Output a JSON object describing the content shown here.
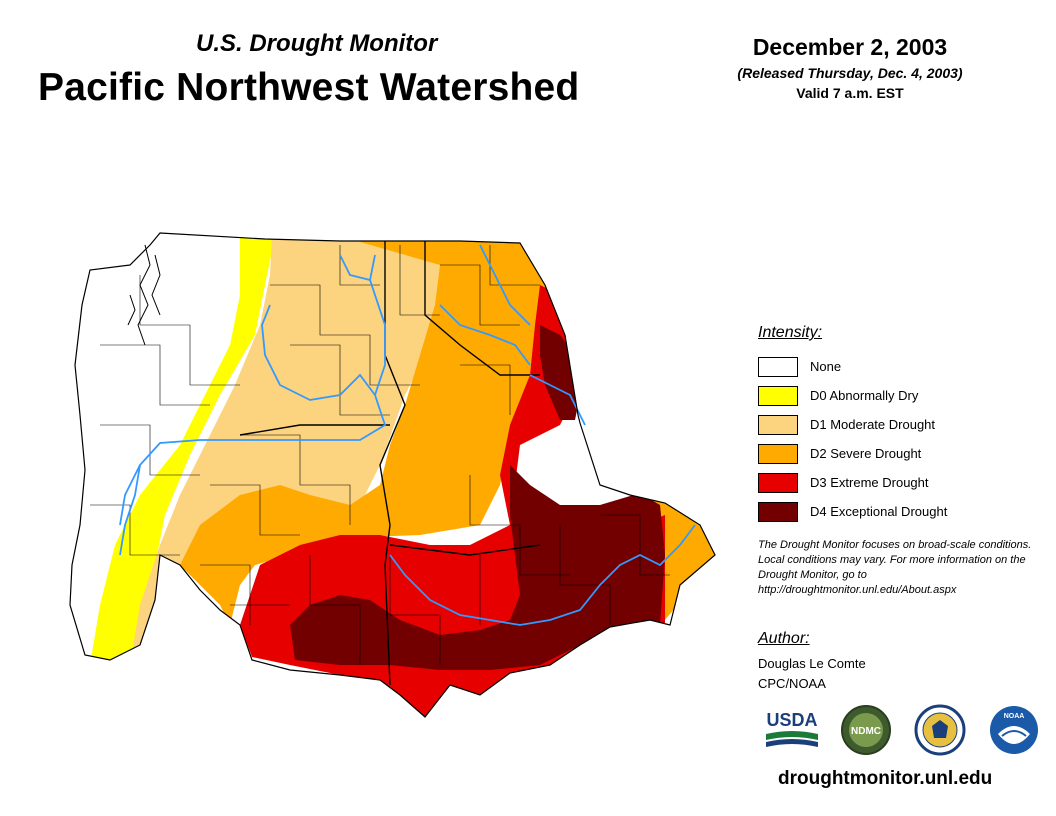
{
  "header": {
    "subtitle": "U.S. Drought Monitor",
    "title": "Pacific Northwest Watershed",
    "date": "December 2, 2003",
    "released": "(Released Thursday, Dec. 4, 2003)",
    "valid": "Valid 7 a.m. EST"
  },
  "legend": {
    "title": "Intensity:",
    "items": [
      {
        "label": "None",
        "color": "#ffffff"
      },
      {
        "label": "D0 Abnormally Dry",
        "color": "#ffff00"
      },
      {
        "label": "D1 Moderate Drought",
        "color": "#fcd37f"
      },
      {
        "label": "D2 Severe Drought",
        "color": "#ffaa00"
      },
      {
        "label": "D3 Extreme Drought",
        "color": "#e60000"
      },
      {
        "label": "D4 Exceptional Drought",
        "color": "#730000"
      }
    ]
  },
  "note": "The Drought Monitor focuses on broad-scale conditions. Local conditions may vary. For more information on the Drought Monitor, go to http://droughtmonitor.unl.edu/About.aspx",
  "author": {
    "title": "Author:",
    "name": "Douglas Le Comte",
    "org": "CPC/NOAA"
  },
  "logos": {
    "usda": "USDA",
    "ndmc": "NDMC",
    "noaa": "NOAA"
  },
  "footer": {
    "site": "droughtmonitor.unl.edu"
  },
  "colors": {
    "river": "#3399ff",
    "border": "#000000"
  }
}
